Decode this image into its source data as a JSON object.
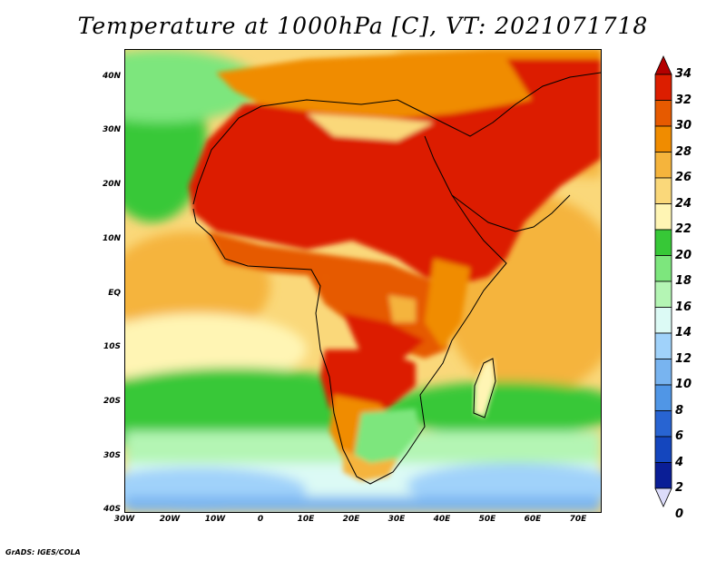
{
  "title": "Temperature at 1000hPa [C], VT: 2021071718",
  "credit": "GrADS: IGES/COLA",
  "map": {
    "projection": "lat-lon",
    "lon_range": [
      -30,
      75
    ],
    "lat_range": [
      -40,
      45
    ],
    "lat_ticks": [
      "40N",
      "30N",
      "20N",
      "10N",
      "EQ",
      "10S",
      "20S",
      "30S",
      "40S"
    ],
    "lon_ticks": [
      "30W",
      "20W",
      "10W",
      "0",
      "10E",
      "20E",
      "30E",
      "40E",
      "50E",
      "60E",
      "70E"
    ]
  },
  "colorbar": {
    "labels": [
      "34",
      "32",
      "30",
      "28",
      "26",
      "24",
      "22",
      "20",
      "18",
      "16",
      "14",
      "12",
      "10",
      "8",
      "6",
      "4",
      "2",
      "0"
    ],
    "colors": [
      "#b40000",
      "#dc1e00",
      "#e65a00",
      "#f08c00",
      "#f5b43c",
      "#fad87a",
      "#fff5b4",
      "#37c837",
      "#7de67d",
      "#b4f5b4",
      "#dcfaf5",
      "#a0d2fa",
      "#78b4f0",
      "#5096e6",
      "#2864d2",
      "#1446be",
      "#0a1e96",
      "#000064"
    ]
  },
  "chart_data": {
    "type": "heatmap",
    "title": "Temperature at 1000hPa [C], VT: 2021071718",
    "xlabel": "",
    "ylabel": "",
    "x_ticks": [
      "30W",
      "20W",
      "10W",
      "0",
      "10E",
      "20E",
      "30E",
      "40E",
      "50E",
      "60E",
      "70E"
    ],
    "y_ticks": [
      "40N",
      "30N",
      "20N",
      "10N",
      "EQ",
      "10S",
      "20S",
      "30S",
      "40S"
    ],
    "value_range": [
      0,
      34
    ],
    "colorbar_levels": [
      0,
      2,
      4,
      6,
      8,
      10,
      12,
      14,
      16,
      18,
      20,
      22,
      24,
      26,
      28,
      30,
      32,
      34
    ]
  }
}
